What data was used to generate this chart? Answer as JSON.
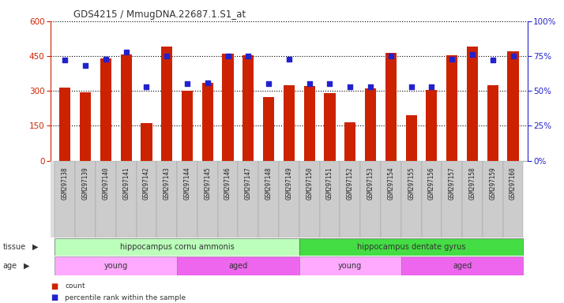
{
  "title": "GDS4215 / MmugDNA.22687.1.S1_at",
  "samples": [
    "GSM297138",
    "GSM297139",
    "GSM297140",
    "GSM297141",
    "GSM297142",
    "GSM297143",
    "GSM297144",
    "GSM297145",
    "GSM297146",
    "GSM297147",
    "GSM297148",
    "GSM297149",
    "GSM297150",
    "GSM297151",
    "GSM297152",
    "GSM297153",
    "GSM297154",
    "GSM297155",
    "GSM297156",
    "GSM297157",
    "GSM297158",
    "GSM297159",
    "GSM297160"
  ],
  "counts": [
    315,
    295,
    440,
    458,
    160,
    490,
    300,
    335,
    460,
    455,
    275,
    325,
    320,
    290,
    165,
    310,
    465,
    195,
    305,
    455,
    490,
    325,
    470
  ],
  "percentiles": [
    72,
    68,
    73,
    78,
    53,
    75,
    55,
    56,
    75,
    75,
    55,
    73,
    55,
    55,
    53,
    53,
    75,
    53,
    53,
    73,
    76,
    72,
    75
  ],
  "ylim_left": [
    0,
    600
  ],
  "ylim_right": [
    0,
    100
  ],
  "yticks_left": [
    0,
    150,
    300,
    450,
    600
  ],
  "yticks_right": [
    0,
    25,
    50,
    75,
    100
  ],
  "bar_color": "#cc2200",
  "dot_color": "#2222cc",
  "background_color": "#ffffff",
  "tick_bg_color": "#cccccc",
  "tissue_groups": [
    {
      "label": "hippocampus cornu ammonis",
      "start": 0,
      "end": 12,
      "color": "#bbffbb"
    },
    {
      "label": "hippocampus dentate gyrus",
      "start": 12,
      "end": 23,
      "color": "#44dd44"
    }
  ],
  "age_groups": [
    {
      "label": "young",
      "start": 0,
      "end": 6,
      "color": "#ffaaff"
    },
    {
      "label": "aged",
      "start": 6,
      "end": 12,
      "color": "#ee66ee"
    },
    {
      "label": "young",
      "start": 12,
      "end": 17,
      "color": "#ffaaff"
    },
    {
      "label": "aged",
      "start": 17,
      "end": 23,
      "color": "#ee66ee"
    }
  ],
  "tissue_label": "tissue",
  "age_label": "age",
  "legend_count": "count",
  "legend_percentile": "percentile rank within the sample",
  "left_axis_color": "#cc2200",
  "right_axis_color": "#2222cc",
  "label_color": "#333333"
}
